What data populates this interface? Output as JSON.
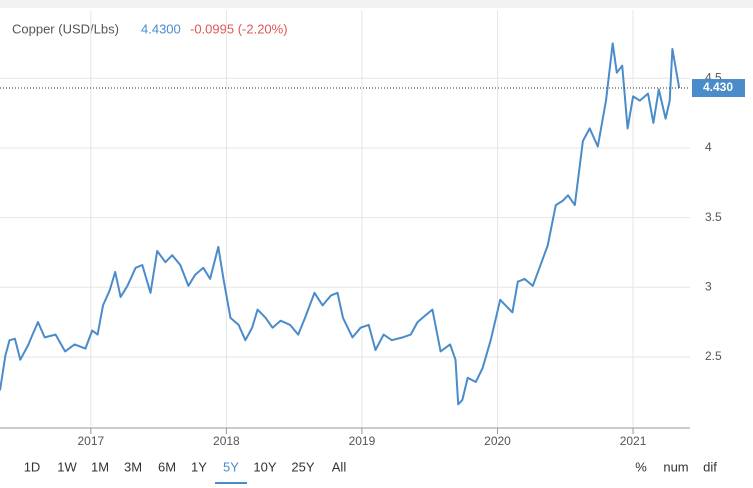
{
  "header": {
    "title": "Copper (USD/Lbs)",
    "price": "4.4300",
    "change": "-0.0995 (-2.20%)"
  },
  "chart_data": {
    "type": "line",
    "x": [
      2016.33,
      2016.37,
      2016.4,
      2016.44,
      2016.48,
      2016.54,
      2016.57,
      2016.61,
      2016.66,
      2016.74,
      2016.81,
      2016.88,
      2016.96,
      2017.01,
      2017.05,
      2017.09,
      2017.14,
      2017.18,
      2017.22,
      2017.27,
      2017.33,
      2017.38,
      2017.44,
      2017.49,
      2017.55,
      2017.6,
      2017.66,
      2017.72,
      2017.77,
      2017.83,
      2017.88,
      2017.94,
      2017.98,
      2018.03,
      2018.09,
      2018.14,
      2018.19,
      2018.23,
      2018.29,
      2018.34,
      2018.4,
      2018.47,
      2018.53,
      2018.58,
      2018.65,
      2018.71,
      2018.77,
      2018.82,
      2018.86,
      2018.93,
      2018.99,
      2019.05,
      2019.1,
      2019.16,
      2019.22,
      2019.3,
      2019.36,
      2019.41,
      2019.47,
      2019.52,
      2019.58,
      2019.65,
      2019.69,
      2019.71,
      2019.74,
      2019.78,
      2019.84,
      2019.89,
      2019.95,
      2020.02,
      2020.06,
      2020.11,
      2020.15,
      2020.2,
      2020.26,
      2020.31,
      2020.37,
      2020.43,
      2020.48,
      2020.52,
      2020.57,
      2020.63,
      2020.68,
      2020.74,
      2020.8,
      2020.85,
      2020.88,
      2020.92,
      2020.96,
      2021.0,
      2021.05,
      2021.11,
      2021.15,
      2021.19,
      2021.24,
      2021.27,
      2021.29,
      2021.34
    ],
    "series": [
      {
        "name": "Copper",
        "color": "#4a8cc9",
        "values": [
          2.26,
          2.51,
          2.62,
          2.63,
          2.48,
          2.59,
          2.66,
          2.75,
          2.64,
          2.66,
          2.54,
          2.59,
          2.56,
          2.69,
          2.66,
          2.87,
          2.98,
          3.11,
          2.93,
          3.01,
          3.14,
          3.16,
          2.96,
          3.26,
          3.18,
          3.23,
          3.16,
          3.01,
          3.09,
          3.14,
          3.06,
          3.29,
          3.05,
          2.78,
          2.73,
          2.62,
          2.71,
          2.84,
          2.78,
          2.71,
          2.76,
          2.73,
          2.66,
          2.78,
          2.96,
          2.87,
          2.94,
          2.96,
          2.78,
          2.64,
          2.71,
          2.73,
          2.55,
          2.66,
          2.62,
          2.64,
          2.66,
          2.75,
          2.8,
          2.84,
          2.54,
          2.59,
          2.48,
          2.16,
          2.19,
          2.35,
          2.32,
          2.42,
          2.62,
          2.91,
          2.87,
          2.82,
          3.04,
          3.06,
          3.01,
          3.14,
          3.3,
          3.59,
          3.62,
          3.66,
          3.59,
          4.05,
          4.14,
          4.01,
          4.34,
          4.75,
          4.54,
          4.59,
          4.14,
          4.37,
          4.34,
          4.39,
          4.18,
          4.42,
          4.21,
          4.34,
          4.71,
          4.43
        ]
      }
    ],
    "last_value": {
      "value": 4.43,
      "label": "4.430"
    },
    "xlim": [
      2016.33,
      2021.42
    ],
    "xticks": [
      2017,
      2018,
      2019,
      2020,
      2021
    ],
    "ylim": [
      1.99,
      4.99
    ],
    "yticks": [
      2.5,
      3,
      3.5,
      4,
      4.5
    ],
    "grid": true
  },
  "ranges": [
    "1D",
    "1W",
    "1M",
    "3M",
    "6M",
    "1Y",
    "5Y",
    "10Y",
    "25Y",
    "All"
  ],
  "selected_range": "5Y",
  "modes": [
    "%",
    "num",
    "dif"
  ]
}
